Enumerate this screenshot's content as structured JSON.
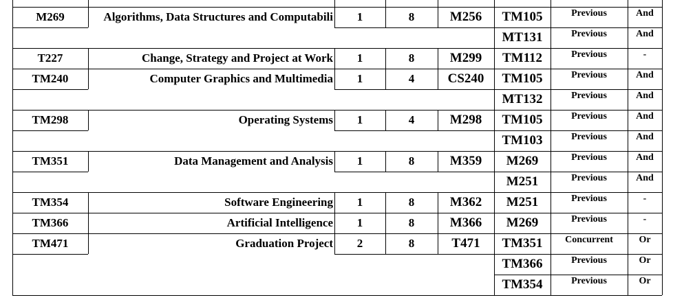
{
  "rows": [
    {
      "code": "M269",
      "title": "Algorithms, Data Structures and Computabili",
      "n1": "1",
      "n2": "8",
      "equiv": "M256",
      "prereq": "TM105",
      "type": "Previous",
      "rel": "And"
    },
    {
      "code": "",
      "title": "",
      "n1": "",
      "n2": "",
      "equiv": "",
      "prereq": "MT131",
      "type": "Previous",
      "rel": "And"
    },
    {
      "code": "T227",
      "title": "Change, Strategy and Project at Work",
      "n1": "1",
      "n2": "8",
      "equiv": "M299",
      "prereq": "TM112",
      "type": "Previous",
      "rel": "-"
    },
    {
      "code": "TM240",
      "title": "Computer Graphics and Multimedia",
      "n1": "1",
      "n2": "4",
      "equiv": "CS240",
      "prereq": "TM105",
      "type": "Previous",
      "rel": "And"
    },
    {
      "code": "",
      "title": "",
      "n1": "",
      "n2": "",
      "equiv": "",
      "prereq": "MT132",
      "type": "Previous",
      "rel": "And"
    },
    {
      "code": "TM298",
      "title": "Operating Systems",
      "n1": "1",
      "n2": "4",
      "equiv": "M298",
      "prereq": "TM105",
      "type": "Previous",
      "rel": "And"
    },
    {
      "code": "",
      "title": "",
      "n1": "",
      "n2": "",
      "equiv": "",
      "prereq": "TM103",
      "type": "Previous",
      "rel": "And"
    },
    {
      "code": "TM351",
      "title": "Data Management and Analysis",
      "n1": "1",
      "n2": "8",
      "equiv": "M359",
      "prereq": "M269",
      "type": "Previous",
      "rel": "And"
    },
    {
      "code": "",
      "title": "",
      "n1": "",
      "n2": "",
      "equiv": "",
      "prereq": "M251",
      "type": "Previous",
      "rel": "And"
    },
    {
      "code": "TM354",
      "title": "Software Engineering",
      "n1": "1",
      "n2": "8",
      "equiv": "M362",
      "prereq": "M251",
      "type": "Previous",
      "rel": "-"
    },
    {
      "code": "TM366",
      "title": "Artificial Intelligence",
      "n1": "1",
      "n2": "8",
      "equiv": "M366",
      "prereq": "M269",
      "type": "Previous",
      "rel": "-"
    },
    {
      "code": "TM471",
      "title": "Graduation Project",
      "n1": "2",
      "n2": "8",
      "equiv": "T471",
      "prereq": "TM351",
      "type": "Concurrent",
      "rel": "Or"
    },
    {
      "code": "",
      "title": "",
      "n1": "",
      "n2": "",
      "equiv": "",
      "prereq": "TM366",
      "type": "Previous",
      "rel": "Or"
    },
    {
      "code": "",
      "title": "",
      "n1": "",
      "n2": "",
      "equiv": "",
      "prereq": "TM354",
      "type": "Previous",
      "rel": "Or"
    }
  ]
}
